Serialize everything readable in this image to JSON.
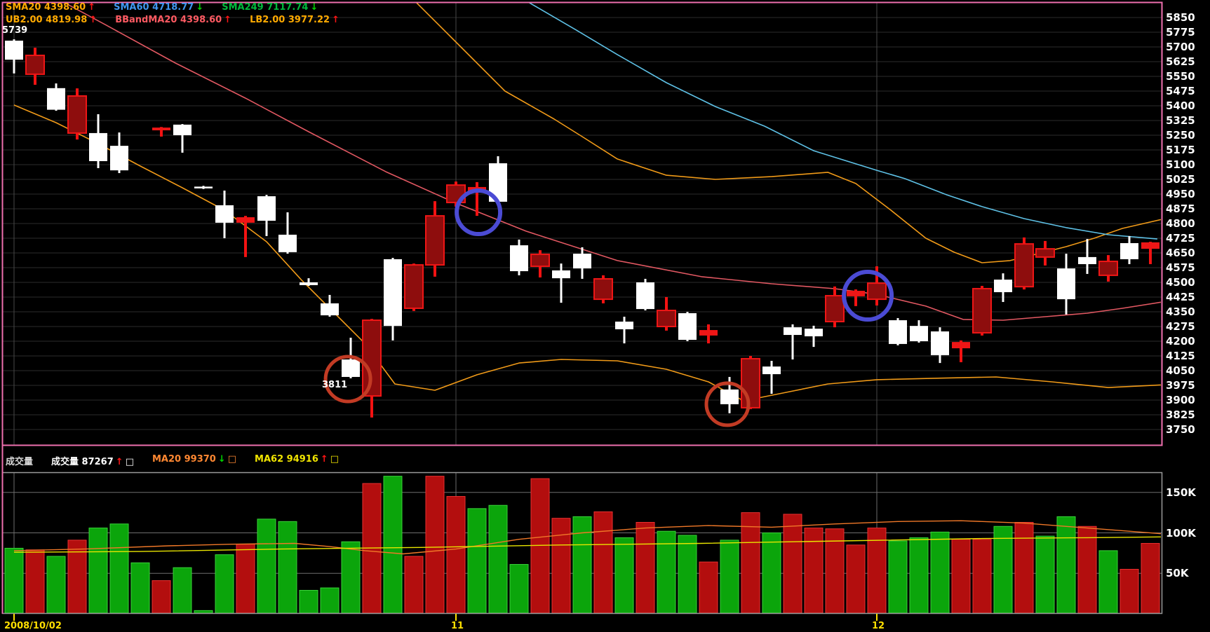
{
  "header": {
    "row1": [
      {
        "name": "SMA20",
        "value": "4398.60",
        "color": "#ffaa00",
        "arrow": "up"
      },
      {
        "name": "SMA60",
        "value": "4718.77",
        "color": "#3f96f0",
        "arrow": "down"
      },
      {
        "name": "SMA249",
        "value": "7117.74",
        "color": "#00bb3c",
        "arrow": "down"
      }
    ],
    "row2": [
      {
        "name": "UB2.00",
        "value": "4819.98",
        "color": "#ffaa00",
        "arrow": "up"
      },
      {
        "name": "BBandMA20",
        "value": "4398.60",
        "color": "#ff5a62",
        "arrow": "up"
      },
      {
        "name": "LB2.00",
        "value": "3977.22",
        "color": "#ffaa00",
        "arrow": "up"
      }
    ]
  },
  "volume_header": {
    "panel_title": "成交量",
    "series": [
      {
        "name": "成交量",
        "value": "87267",
        "color": "#ffffff",
        "arrow": "up",
        "box_color": "#ffffff"
      },
      {
        "name": "MA20",
        "value": "99370",
        "color": "#ff8832",
        "arrow": "down",
        "box_color": "#ff8832"
      },
      {
        "name": "MA62",
        "value": "94916",
        "color": "#f0e400",
        "arrow": "up",
        "box_color": "#f0e400"
      }
    ]
  },
  "annotations": {
    "high_label": {
      "text": "5739"
    },
    "low_label": {
      "text": "3811"
    },
    "circles": [
      {
        "color": "#c23b24",
        "index": 15.87,
        "price": 4007,
        "r": 32
      },
      {
        "color": "#c23b24",
        "index": 33.9,
        "price": 3879,
        "r": 30
      },
      {
        "color": "#4b4bd4",
        "index": 22.07,
        "price": 4857,
        "r": 31
      },
      {
        "color": "#4b4bd4",
        "index": 40.57,
        "price": 4432,
        "r": 34
      }
    ]
  },
  "x_axis": {
    "labels": [
      {
        "text": "2008/10/02",
        "index": 0
      },
      {
        "text": "11",
        "index": 21
      },
      {
        "text": "12",
        "index": 41
      }
    ],
    "color": "#ffdf00"
  },
  "price_axis": {
    "min": 3750,
    "max": 5850,
    "step": 75
  },
  "volume_axis": {
    "ticks": [
      150,
      100,
      50
    ],
    "unit": "K"
  },
  "chart_data": [
    {
      "type": "candlestick",
      "panel": "price",
      "y_range": [
        3750,
        5850
      ],
      "y_step": 75,
      "high_point": {
        "label": "5739",
        "index": 0
      },
      "low_point": {
        "label": "3811",
        "index": 17
      },
      "candles": [
        [
          5635,
          5739,
          5565,
          5732,
          "w"
        ],
        [
          5657,
          5696,
          5507,
          5561,
          "r"
        ],
        [
          5380,
          5514,
          5375,
          5490,
          "w"
        ],
        [
          5450,
          5489,
          5228,
          5261,
          "r"
        ],
        [
          5118,
          5357,
          5082,
          5261,
          "w"
        ],
        [
          5071,
          5264,
          5057,
          5196,
          "w"
        ],
        null,
        [
          5289,
          5292,
          5243,
          5275,
          "r"
        ],
        [
          5250,
          5307,
          5161,
          5304,
          "w"
        ],
        [
          4984,
          4992,
          4976,
          4988,
          "w"
        ],
        [
          4804,
          4968,
          4725,
          4893,
          "w"
        ],
        [
          4832,
          4839,
          4629,
          4804,
          "r"
        ],
        [
          4814,
          4946,
          4736,
          4939,
          "w"
        ],
        [
          4654,
          4857,
          4646,
          4743,
          "w"
        ],
        [
          4486,
          4521,
          4482,
          4500,
          "w"
        ],
        [
          4332,
          4436,
          4325,
          4393,
          "w"
        ],
        [
          4018,
          4218,
          4011,
          4107,
          "w"
        ],
        [
          4307,
          4314,
          3811,
          3921,
          "r"
        ],
        [
          4278,
          4625,
          4204,
          4618,
          "w"
        ],
        [
          4589,
          4596,
          4354,
          4368,
          "r"
        ],
        [
          4839,
          4914,
          4529,
          4589,
          "r"
        ],
        [
          4996,
          5014,
          4886,
          4907,
          "r"
        ],
        [
          4986,
          5011,
          4839,
          4964,
          "r"
        ],
        [
          4911,
          5143,
          4904,
          5107,
          "w"
        ],
        [
          4557,
          4718,
          4536,
          4689,
          "w"
        ],
        [
          4643,
          4664,
          4525,
          4582,
          "r"
        ],
        [
          4521,
          4596,
          4396,
          4561,
          "w"
        ],
        [
          4571,
          4679,
          4518,
          4646,
          "w"
        ],
        [
          4518,
          4536,
          4393,
          4414,
          "r"
        ],
        [
          4261,
          4325,
          4189,
          4300,
          "w"
        ],
        [
          4364,
          4518,
          4357,
          4500,
          "w"
        ],
        [
          4357,
          4425,
          4254,
          4275,
          "r"
        ],
        [
          4207,
          4350,
          4200,
          4343,
          "w"
        ],
        [
          4257,
          4286,
          4189,
          4229,
          "r"
        ],
        [
          3879,
          4018,
          3833,
          3954,
          "w"
        ],
        [
          4111,
          4125,
          3854,
          3861,
          "r"
        ],
        [
          4032,
          4100,
          3932,
          4071,
          "w"
        ],
        [
          4232,
          4286,
          4107,
          4271,
          "w"
        ],
        [
          4225,
          4279,
          4171,
          4264,
          "w"
        ],
        [
          4432,
          4479,
          4271,
          4300,
          "r"
        ],
        [
          4457,
          4464,
          4379,
          4429,
          "r"
        ],
        [
          4496,
          4582,
          4382,
          4414,
          "r"
        ],
        [
          4186,
          4318,
          4179,
          4307,
          "w"
        ],
        [
          4200,
          4307,
          4193,
          4278,
          "w"
        ],
        [
          4129,
          4271,
          4089,
          4250,
          "w"
        ],
        [
          4196,
          4204,
          4093,
          4164,
          "r"
        ],
        [
          4468,
          4482,
          4229,
          4243,
          "r"
        ],
        [
          4450,
          4546,
          4400,
          4514,
          "w"
        ],
        [
          4696,
          4729,
          4464,
          4478,
          "r"
        ],
        [
          4671,
          4711,
          4586,
          4629,
          "r"
        ],
        [
          4414,
          4646,
          4336,
          4571,
          "w"
        ],
        [
          4593,
          4721,
          4543,
          4629,
          "w"
        ],
        [
          4607,
          4639,
          4504,
          4536,
          "r"
        ],
        [
          4618,
          4736,
          4593,
          4700,
          "w"
        ],
        [
          4704,
          4707,
          4593,
          4671,
          "r"
        ]
      ],
      "overlays": {
        "sma20_bbandma20": {
          "color": "#e25862",
          "points": [
            [
              2.17,
              5939
            ],
            [
              4.33,
              5814
            ],
            [
              7.67,
              5618
            ],
            [
              11,
              5439
            ],
            [
              14,
              5268
            ],
            [
              17.67,
              5064
            ],
            [
              21,
              4904
            ],
            [
              24.33,
              4761
            ],
            [
              28.67,
              4611
            ],
            [
              32.67,
              4529
            ],
            [
              36,
              4493
            ],
            [
              39,
              4468
            ],
            [
              41,
              4439
            ],
            [
              43.33,
              4379
            ],
            [
              45.1,
              4311
            ],
            [
              47,
              4307
            ],
            [
              49,
              4325
            ],
            [
              51,
              4343
            ],
            [
              52.67,
              4368
            ],
            [
              54.5,
              4399
            ]
          ]
        },
        "sma60": {
          "color": "#5ec1e6",
          "points": [
            [
              24.27,
              5939
            ],
            [
              26.67,
              5789
            ],
            [
              28.67,
              5661
            ],
            [
              31,
              5518
            ],
            [
              33.33,
              5396
            ],
            [
              35.67,
              5296
            ],
            [
              38,
              5171
            ],
            [
              41,
              5071
            ],
            [
              42.33,
              5029
            ],
            [
              44.33,
              4946
            ],
            [
              46,
              4886
            ],
            [
              48,
              4825
            ],
            [
              50,
              4779
            ],
            [
              52,
              4743
            ],
            [
              54.33,
              4721
            ]
          ]
        },
        "bband_upper": {
          "color": "#f09a18",
          "points": [
            [
              19,
              5939
            ],
            [
              21,
              5725
            ],
            [
              23.33,
              5475
            ],
            [
              25.67,
              5332
            ],
            [
              27,
              5243
            ],
            [
              28.67,
              5129
            ],
            [
              31,
              5046
            ],
            [
              33.33,
              5025
            ],
            [
              36,
              5039
            ],
            [
              38.67,
              5061
            ],
            [
              40,
              5004
            ],
            [
              41.67,
              4868
            ],
            [
              43.33,
              4725
            ],
            [
              44.67,
              4654
            ],
            [
              46,
              4600
            ],
            [
              47.33,
              4611
            ],
            [
              48.67,
              4646
            ],
            [
              50,
              4682
            ],
            [
              51.33,
              4725
            ],
            [
              52.67,
              4775
            ],
            [
              54.5,
              4820
            ]
          ]
        },
        "bband_lower": {
          "color": "#f09a18",
          "points": [
            [
              0,
              5404
            ],
            [
              2,
              5314
            ],
            [
              4,
              5207
            ],
            [
              6,
              5093
            ],
            [
              8,
              4982
            ],
            [
              10,
              4868
            ],
            [
              12,
              4707
            ],
            [
              13.67,
              4511
            ],
            [
              15,
              4368
            ],
            [
              16.67,
              4189
            ],
            [
              18.1,
              3982
            ],
            [
              20,
              3950
            ],
            [
              22,
              4029
            ],
            [
              24,
              4089
            ],
            [
              26,
              4107
            ],
            [
              28.67,
              4100
            ],
            [
              31,
              4057
            ],
            [
              33,
              3993
            ],
            [
              34.67,
              3896
            ],
            [
              36.67,
              3939
            ],
            [
              38.67,
              3982
            ],
            [
              41,
              4004
            ],
            [
              43.67,
              4011
            ],
            [
              46.67,
              4018
            ],
            [
              49.33,
              3993
            ],
            [
              52,
              3964
            ],
            [
              54.5,
              3977
            ]
          ]
        }
      }
    },
    {
      "type": "bar",
      "panel": "volume",
      "ylabel": "K",
      "y_ticks": [
        50,
        100,
        150
      ],
      "values": [
        81,
        79,
        71,
        91,
        106,
        111,
        63,
        41,
        57,
        4,
        73,
        86,
        117,
        114,
        29,
        32,
        89,
        161,
        170,
        71,
        170,
        145,
        130,
        134,
        61,
        167,
        118,
        120,
        126,
        94,
        113,
        102,
        97,
        64,
        91,
        125,
        100,
        123,
        106,
        105,
        85,
        106,
        90,
        94,
        101,
        92,
        92,
        108,
        113,
        96,
        120,
        108,
        78,
        55,
        87
      ],
      "colors": [
        "g",
        "r",
        "g",
        "r",
        "g",
        "g",
        "g",
        "r",
        "g",
        "g",
        "g",
        "r",
        "g",
        "g",
        "g",
        "g",
        "g",
        "r",
        "g",
        "r",
        "r",
        "r",
        "g",
        "g",
        "g",
        "r",
        "r",
        "g",
        "r",
        "g",
        "r",
        "g",
        "g",
        "r",
        "g",
        "r",
        "g",
        "r",
        "r",
        "r",
        "r",
        "r",
        "g",
        "g",
        "g",
        "r",
        "r",
        "g",
        "r",
        "g",
        "g",
        "r",
        "g",
        "r",
        "r"
      ],
      "ma20": {
        "color": "#f07828",
        "points": [
          [
            0,
            78
          ],
          [
            3.33,
            80
          ],
          [
            7.33,
            84
          ],
          [
            10.33,
            86
          ],
          [
            13.33,
            87
          ],
          [
            15,
            83
          ],
          [
            16.67,
            78
          ],
          [
            18.5,
            74
          ],
          [
            21,
            80
          ],
          [
            24,
            92
          ],
          [
            27,
            100
          ],
          [
            30,
            106
          ],
          [
            33,
            109
          ],
          [
            36,
            107
          ],
          [
            39,
            111
          ],
          [
            42,
            114
          ],
          [
            45,
            115
          ],
          [
            48,
            112
          ],
          [
            51,
            106
          ],
          [
            54.5,
            99
          ]
        ]
      },
      "ma62": {
        "color": "#e8e400",
        "points": [
          [
            0,
            76
          ],
          [
            6,
            77
          ],
          [
            12.67,
            80
          ],
          [
            19.33,
            82
          ],
          [
            26,
            85
          ],
          [
            32.67,
            87
          ],
          [
            39.33,
            90
          ],
          [
            46,
            93
          ],
          [
            51,
            94
          ],
          [
            54.5,
            95
          ]
        ]
      }
    }
  ]
}
